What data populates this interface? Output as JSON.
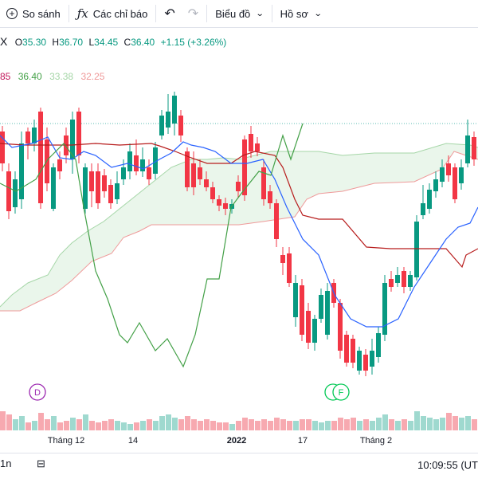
{
  "toolbar": {
    "compare_label": "So sánh",
    "indicators_label": "Các chỉ báo",
    "chart_label": "Biểu đồ",
    "profile_label": "Hồ sơ"
  },
  "legend": {
    "symbol": "X",
    "open_key": "O",
    "open_value": "35.30",
    "high_key": "H",
    "high_value": "36.70",
    "low_key": "L",
    "low_value": "34.45",
    "close_key": "C",
    "close_value": "36.40",
    "change": "+1.15 (+3.26%)",
    "ichimoku_values": [
      "85",
      "36.40",
      "33.38",
      "32.25"
    ],
    "ichimoku_colors": [
      "#c2185b",
      "#43a047",
      "#a5d6a7",
      "#ef9a9a"
    ]
  },
  "x_axis": {
    "labels": [
      "Tháng 12",
      "14",
      "2022",
      "17",
      "Tháng 2"
    ]
  },
  "markers": {
    "dividend": "D",
    "split": "F"
  },
  "bottom": {
    "timeframe": "1n",
    "clock": "10:09:55 (UT"
  },
  "colors": {
    "up": "#089981",
    "down": "#f23645",
    "conversion": "#2962ff",
    "base": "#b71c1c",
    "lagging": "#43a047",
    "span_a": "#a5d6a7",
    "span_b": "#ef9a9a",
    "cloud": "#e8f5e9"
  },
  "chart_data": {
    "type": "candlestick",
    "ohlc_recent": {
      "open": 35.3,
      "high": 36.7,
      "low": 34.45,
      "close": 36.4
    },
    "indicators": [
      "Tenkan-sen",
      "Kijun-sen",
      "Chikou Span",
      "Senkou Span A",
      "Senkou Span B"
    ],
    "x_tick_labels": [
      "Tháng 12",
      "14",
      "2022",
      "17",
      "Tháng 2"
    ]
  }
}
